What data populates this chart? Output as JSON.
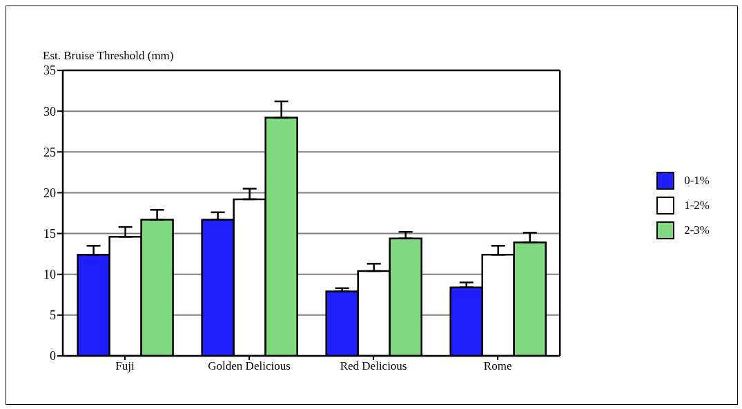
{
  "chart_data": {
    "type": "bar",
    "ylabel": "Est. Bruise Threshold (mm)",
    "categories": [
      "Fuji",
      "Golden Delicious",
      "Red Delicious",
      "Rome"
    ],
    "series": [
      {
        "name": "0-1%",
        "color": "#2020ff",
        "values": [
          12.4,
          16.7,
          7.9,
          8.4
        ],
        "errors": [
          [
            12.4,
            13.5
          ],
          [
            16.7,
            17.6
          ],
          [
            7.9,
            8.3
          ],
          [
            8.4,
            9.0
          ]
        ]
      },
      {
        "name": "1-2%",
        "color": "#ffffff",
        "values": [
          14.6,
          19.2,
          10.4,
          12.4
        ],
        "errors": [
          [
            14.6,
            15.8
          ],
          [
            19.2,
            20.5
          ],
          [
            10.4,
            11.3
          ],
          [
            12.4,
            13.5
          ]
        ]
      },
      {
        "name": "2-3%",
        "color": "#80d880",
        "values": [
          16.7,
          29.2,
          14.4,
          13.9
        ],
        "errors": [
          [
            16.7,
            17.9
          ],
          [
            29.2,
            31.2
          ],
          [
            14.4,
            15.2
          ],
          [
            13.9,
            15.1
          ]
        ]
      }
    ],
    "ylim": [
      0,
      35
    ],
    "yticks": [
      0,
      5,
      10,
      15,
      20,
      25,
      30,
      35
    ],
    "grid": "y",
    "legend": "right"
  }
}
